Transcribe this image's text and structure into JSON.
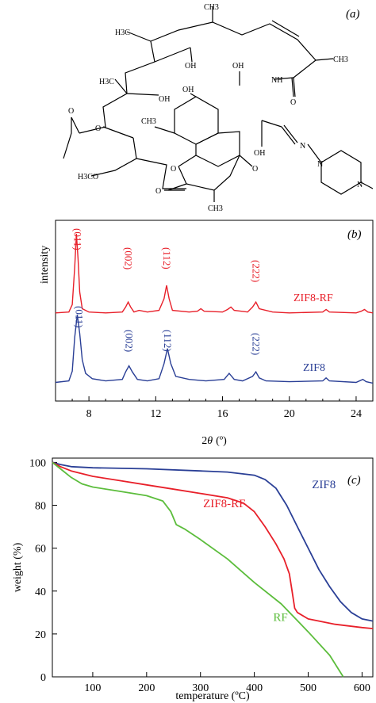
{
  "panel_a": {
    "tag": "(a)",
    "atom_labels": {
      "ch3": "CH3",
      "oh": "OH",
      "o": "O",
      "nh": "NH",
      "n": "N",
      "h3c": "H3C",
      "h3co": "H3CO"
    }
  },
  "chart_data": [
    {
      "id": "b",
      "type": "line",
      "panel_tag": "(b)",
      "xlabel_prefix": "2",
      "xlabel_symbol": "θ",
      "xlabel_unit": "(º)",
      "ylabel": "intensity",
      "xlim": [
        6,
        25
      ],
      "xticks": [
        8,
        12,
        16,
        20,
        24
      ],
      "grid": false,
      "series": [
        {
          "name": "ZIF8-RF",
          "color": "#e8202a",
          "x": [
            6,
            6.8,
            7.0,
            7.15,
            7.25,
            7.35,
            7.45,
            7.6,
            8.0,
            9.0,
            10.0,
            10.2,
            10.35,
            10.5,
            10.7,
            11.0,
            11.5,
            12.2,
            12.5,
            12.65,
            12.8,
            13.0,
            14.0,
            14.5,
            14.7,
            14.9,
            16.0,
            16.3,
            16.5,
            16.7,
            17.5,
            17.8,
            18.0,
            18.2,
            19.0,
            20.0,
            22.0,
            22.2,
            22.4,
            24.0,
            24.3,
            24.5,
            24.7,
            25
          ],
          "y": [
            5,
            6,
            15,
            60,
            100,
            70,
            30,
            10,
            6,
            5,
            6,
            12,
            18,
            12,
            6,
            8,
            6,
            8,
            22,
            38,
            22,
            8,
            6,
            7,
            10,
            7,
            6,
            9,
            12,
            8,
            6,
            12,
            18,
            10,
            6,
            5,
            6,
            9,
            6,
            5,
            7,
            9,
            6,
            5
          ],
          "peak_labels": [
            {
              "text": "(011)",
              "x": 7.3
            },
            {
              "text": "(002)",
              "x": 10.35
            },
            {
              "text": "(112)",
              "x": 12.65
            },
            {
              "text": "(222)",
              "x": 18.0
            }
          ]
        },
        {
          "name": "ZIF8",
          "color": "#2a3f96",
          "x": [
            6,
            6.8,
            7.0,
            7.15,
            7.3,
            7.45,
            7.6,
            7.8,
            8.2,
            9.0,
            10.0,
            10.2,
            10.4,
            10.6,
            10.9,
            11.5,
            12.2,
            12.5,
            12.7,
            12.9,
            13.2,
            14.0,
            15.0,
            16.1,
            16.4,
            16.7,
            17.2,
            17.8,
            18.0,
            18.2,
            18.6,
            20.0,
            22.0,
            22.2,
            22.4,
            24.0,
            24.4,
            24.6,
            25
          ],
          "y": [
            10,
            12,
            25,
            70,
            100,
            75,
            40,
            22,
            15,
            12,
            14,
            24,
            32,
            24,
            14,
            12,
            15,
            35,
            55,
            35,
            18,
            14,
            12,
            14,
            22,
            14,
            12,
            18,
            24,
            16,
            12,
            11,
            12,
            16,
            12,
            10,
            14,
            11,
            9
          ],
          "peak_labels": [
            {
              "text": "(011)",
              "x": 7.4
            },
            {
              "text": "(002)",
              "x": 10.4
            },
            {
              "text": "(112)",
              "x": 12.7
            },
            {
              "text": "(222)",
              "x": 18.0
            }
          ]
        }
      ]
    },
    {
      "id": "c",
      "type": "line",
      "panel_tag": "(c)",
      "xlabel": "temperature (ºC)",
      "ylabel": "weight (%)",
      "xlim": [
        25,
        620
      ],
      "ylim": [
        0,
        102
      ],
      "xticks": [
        100,
        200,
        300,
        400,
        500,
        600
      ],
      "yticks": [
        0,
        20,
        40,
        60,
        80,
        100
      ],
      "grid": false,
      "series": [
        {
          "name": "ZIF8",
          "color": "#2a3f96",
          "x": [
            25,
            40,
            60,
            100,
            200,
            300,
            350,
            400,
            420,
            440,
            460,
            480,
            500,
            520,
            540,
            560,
            580,
            600,
            620
          ],
          "y": [
            100,
            99,
            98,
            97.5,
            97,
            96,
            95.5,
            94,
            92,
            88,
            80,
            70,
            60,
            50,
            42,
            35,
            30,
            27,
            26
          ],
          "label_at": [
            507,
            88
          ]
        },
        {
          "name": "ZIF8-RF",
          "color": "#e8202a",
          "x": [
            25,
            40,
            60,
            100,
            150,
            200,
            250,
            300,
            350,
            380,
            400,
            420,
            440,
            455,
            465,
            470,
            475,
            480,
            500,
            550,
            600,
            620
          ],
          "y": [
            100,
            98,
            96,
            93.5,
            91.5,
            89.5,
            87.5,
            85.5,
            83.5,
            81,
            77,
            70,
            62,
            55,
            48,
            40,
            32,
            30,
            27,
            24.5,
            23,
            22.5
          ],
          "label_at": [
            305,
            79
          ]
        },
        {
          "name": "RF",
          "color": "#5cbd3c",
          "x": [
            25,
            40,
            60,
            80,
            100,
            150,
            200,
            230,
            245,
            255,
            270,
            300,
            350,
            400,
            450,
            500,
            540,
            565
          ],
          "y": [
            100,
            97,
            93,
            90,
            88.5,
            86.5,
            84.5,
            82,
            77,
            71,
            69,
            64,
            55,
            44,
            34,
            21,
            10,
            0
          ],
          "label_at": [
            435,
            26
          ]
        }
      ]
    }
  ]
}
